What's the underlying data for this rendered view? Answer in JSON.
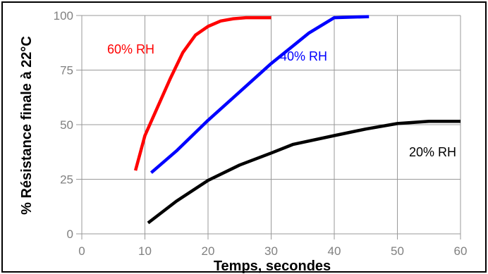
{
  "chart_data": {
    "type": "line",
    "title": "",
    "xlabel": "Temps, secondes",
    "ylabel": "% Résistance finale à 22°C",
    "xlim": [
      0,
      60
    ],
    "ylim": [
      0,
      100
    ],
    "x_ticks": [
      "0",
      "10",
      "20",
      "30",
      "40",
      "50",
      "60"
    ],
    "y_ticks": [
      "0",
      "25",
      "50",
      "75",
      "100"
    ],
    "grid": true,
    "legend": "none",
    "series": [
      {
        "name": "60% RH",
        "color": "#ff0000",
        "x": [
          8.5,
          10,
          12,
          14,
          16,
          17,
          18,
          20,
          22,
          24,
          26,
          28,
          30
        ],
        "y": [
          29,
          45,
          58,
          71,
          83,
          87,
          91,
          95,
          97.5,
          98.5,
          99,
          99,
          99
        ]
      },
      {
        "name": "40% RH",
        "color": "#0000ff",
        "x": [
          11,
          15,
          20,
          25,
          30,
          33,
          36,
          40,
          45.5
        ],
        "y": [
          28,
          38,
          52,
          65,
          78,
          85,
          92,
          99,
          99.5
        ]
      },
      {
        "name": "20% RH",
        "color": "#000000",
        "x": [
          10.5,
          15,
          20,
          25,
          30,
          33.5,
          40,
          45,
          50,
          55,
          60
        ],
        "y": [
          5,
          15,
          24.5,
          31.5,
          37,
          41,
          45,
          48,
          50.5,
          51.5,
          51.5
        ]
      }
    ]
  }
}
